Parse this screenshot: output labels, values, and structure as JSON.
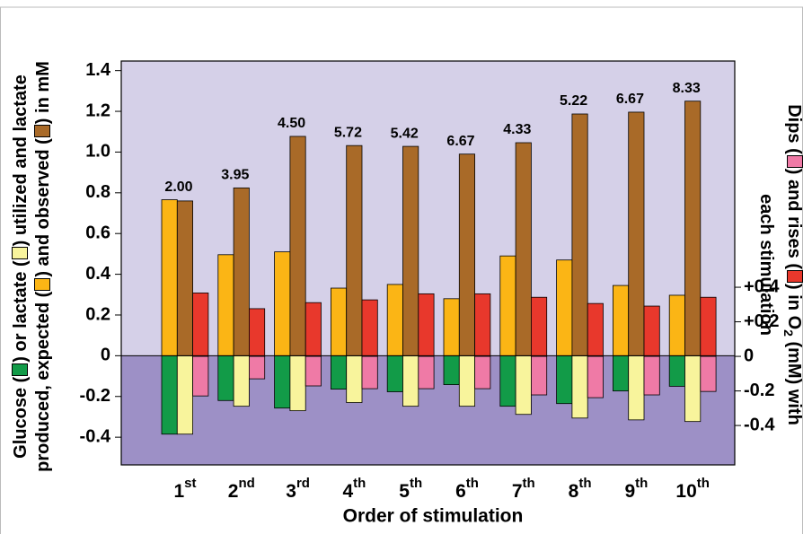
{
  "chart_data": {
    "type": "bar",
    "categories": [
      "1st",
      "2nd",
      "3rd",
      "4th",
      "5th",
      "6th",
      "7th",
      "8th",
      "9th",
      "10th"
    ],
    "xlabel": "Order of stimulation",
    "ylabel_lines": [
      [
        "Glucose (",
        ") or lactate (",
        ") utilized and lactate"
      ],
      [
        "produced, expected (",
        ") and observed (",
        ") in mM"
      ]
    ],
    "y2label_lines": [
      [
        "Dips (",
        ") and rises (",
        ") in O",
        "2",
        " (mM) with"
      ],
      [
        "each stimulation"
      ]
    ],
    "ylim": [
      -0.536,
      1.447
    ],
    "yticks": [
      -0.4,
      -0.2,
      0,
      0.2,
      0.4,
      0.6,
      0.8,
      {
        "value": 1,
        "label": "1.0"
      },
      1.2,
      1.4
    ],
    "y2lim": [
      -0.628,
      1.709
    ],
    "y2ticks": [
      -0.4,
      -0.2,
      0,
      {
        "value": 0.2,
        "label": "+0.2"
      },
      {
        "value": 0.4,
        "label": "+0.4"
      }
    ],
    "series": [
      {
        "color": "#129b48",
        "values": [
          -0.385,
          -0.22,
          -0.257,
          -0.164,
          -0.177,
          -0.142,
          -0.248,
          -0.235,
          -0.173,
          -0.15
        ]
      },
      {
        "color": "#f8f49c",
        "values": [
          -0.385,
          -0.248,
          -0.27,
          -0.23,
          -0.248,
          -0.248,
          -0.288,
          -0.306,
          -0.315,
          -0.323
        ]
      },
      {
        "color": "#fbb515",
        "values": [
          0.766,
          0.496,
          0.51,
          0.332,
          0.35,
          0.28,
          0.49,
          0.47,
          0.345,
          0.297
        ]
      },
      {
        "color": "#a96a28",
        "values": [
          0.76,
          0.824,
          1.077,
          1.032,
          1.028,
          0.99,
          1.046,
          1.187,
          1.196,
          1.25
        ]
      },
      {
        "color": "#e8382c",
        "axis": "y2",
        "values": [
          0.367,
          0.276,
          0.311,
          0.327,
          0.362,
          0.362,
          0.342,
          0.306,
          0.291,
          0.342
        ]
      },
      {
        "color": "#ef7aa6",
        "axis": "y2",
        "values": [
          -0.229,
          -0.13,
          -0.171,
          -0.187,
          -0.187,
          -0.187,
          -0.223,
          -0.239,
          -0.223,
          -0.203
        ]
      }
    ],
    "annotations": [
      "2.00",
      "3.95",
      "4.50",
      "5.72",
      "5.42",
      "6.67",
      "4.33",
      "5.22",
      "6.67",
      "8.33"
    ],
    "background_colors": [
      "#d5d0e8",
      "#9d90c6"
    ]
  }
}
